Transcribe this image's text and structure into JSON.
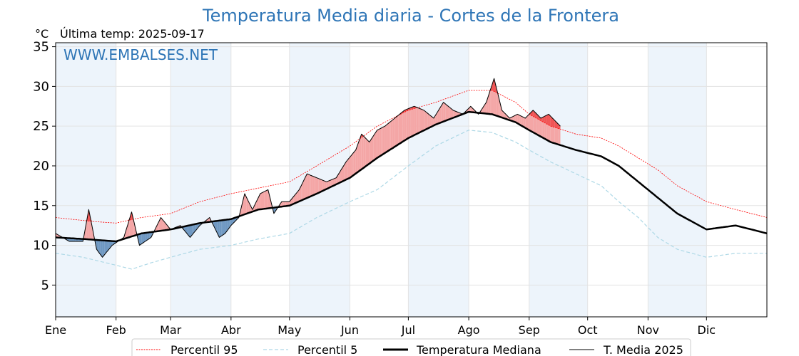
{
  "header": {
    "title": "Temperatura Media diaria - Cortes de la Frontera",
    "unit": "°C",
    "last_temp": "Última temp: 2025-09-17",
    "watermark": "WWW.EMBALSES.NET"
  },
  "legend": {
    "p95": "Percentil 95",
    "p5": "Percentil 5",
    "median": "Temperatura Mediana",
    "current": "T. Media 2025"
  },
  "chart_data": {
    "type": "line",
    "title": "Temperatura Media diaria - Cortes de la Frontera",
    "ylabel": "°C",
    "ylim": [
      1,
      35.5
    ],
    "xlim": [
      1,
      366
    ],
    "y_ticks": [
      5,
      10,
      15,
      20,
      25,
      30,
      35
    ],
    "months": [
      "Ene",
      "Feb",
      "Mar",
      "Abr",
      "May",
      "Jun",
      "Jul",
      "Ago",
      "Sep",
      "Oct",
      "Nov",
      "Dic"
    ],
    "month_start_days": [
      1,
      32,
      60,
      91,
      121,
      152,
      182,
      213,
      244,
      274,
      305,
      335
    ],
    "grid": true,
    "legend_position": "bottom",
    "colors": {
      "p95": "#ff0000",
      "p5": "#add8e6",
      "median": "#000000",
      "current": "#000000",
      "above_fill": "#f4a6a6",
      "above_p95_fill": "#f05555",
      "below_fill": "#6f98c2",
      "shade": "#edf4fb",
      "title": "#2e75b6"
    },
    "last_day": 260,
    "anchors": {
      "median": [
        [
          1,
          11
        ],
        [
          15,
          10.8
        ],
        [
          32,
          10.5
        ],
        [
          45,
          11.5
        ],
        [
          60,
          12
        ],
        [
          75,
          12.8
        ],
        [
          91,
          13.3
        ],
        [
          105,
          14.5
        ],
        [
          121,
          15
        ],
        [
          135,
          16.5
        ],
        [
          152,
          18.5
        ],
        [
          166,
          21
        ],
        [
          182,
          23.5
        ],
        [
          196,
          25.2
        ],
        [
          213,
          26.8
        ],
        [
          225,
          26.5
        ],
        [
          237,
          25.5
        ],
        [
          244,
          24.5
        ],
        [
          255,
          23
        ],
        [
          268,
          22
        ],
        [
          281,
          21.2
        ],
        [
          290,
          20
        ],
        [
          300,
          18
        ],
        [
          310,
          16
        ],
        [
          320,
          14
        ],
        [
          335,
          12
        ],
        [
          350,
          12.5
        ],
        [
          366,
          11.5
        ]
      ],
      "p95": [
        [
          1,
          13.5
        ],
        [
          20,
          13
        ],
        [
          32,
          12.8
        ],
        [
          45,
          13.5
        ],
        [
          60,
          14
        ],
        [
          75,
          15.5
        ],
        [
          91,
          16.5
        ],
        [
          105,
          17.2
        ],
        [
          121,
          18
        ],
        [
          135,
          20
        ],
        [
          152,
          22.5
        ],
        [
          166,
          25
        ],
        [
          182,
          27
        ],
        [
          196,
          28
        ],
        [
          213,
          29.5
        ],
        [
          225,
          29.5
        ],
        [
          237,
          28
        ],
        [
          244,
          26.5
        ],
        [
          255,
          25
        ],
        [
          268,
          24
        ],
        [
          281,
          23.5
        ],
        [
          290,
          22.5
        ],
        [
          300,
          21
        ],
        [
          310,
          19.5
        ],
        [
          320,
          17.5
        ],
        [
          335,
          15.5
        ],
        [
          350,
          14.5
        ],
        [
          366,
          13.5
        ]
      ],
      "p5": [
        [
          1,
          9
        ],
        [
          15,
          8.5
        ],
        [
          32,
          7.5
        ],
        [
          40,
          7
        ],
        [
          50,
          7.8
        ],
        [
          60,
          8.5
        ],
        [
          75,
          9.5
        ],
        [
          91,
          10
        ],
        [
          105,
          10.8
        ],
        [
          121,
          11.5
        ],
        [
          135,
          13.5
        ],
        [
          152,
          15.5
        ],
        [
          166,
          17
        ],
        [
          182,
          20
        ],
        [
          196,
          22.5
        ],
        [
          213,
          24.5
        ],
        [
          225,
          24.2
        ],
        [
          237,
          23
        ],
        [
          244,
          22
        ],
        [
          255,
          20.5
        ],
        [
          268,
          19
        ],
        [
          281,
          17.5
        ],
        [
          290,
          15.5
        ],
        [
          300,
          13.5
        ],
        [
          310,
          11
        ],
        [
          320,
          9.5
        ],
        [
          335,
          8.5
        ],
        [
          350,
          9
        ],
        [
          366,
          9
        ]
      ],
      "current": [
        [
          1,
          11.5
        ],
        [
          8,
          10.5
        ],
        [
          15,
          10.5
        ],
        [
          18,
          14.5
        ],
        [
          22,
          9.5
        ],
        [
          25,
          8.5
        ],
        [
          30,
          10
        ],
        [
          36,
          11
        ],
        [
          40,
          14.2
        ],
        [
          44,
          10
        ],
        [
          50,
          11
        ],
        [
          55,
          13.5
        ],
        [
          60,
          12
        ],
        [
          65,
          12.5
        ],
        [
          70,
          11
        ],
        [
          75,
          12.5
        ],
        [
          80,
          13.5
        ],
        [
          85,
          11
        ],
        [
          88,
          11.5
        ],
        [
          91,
          12.5
        ],
        [
          95,
          13.5
        ],
        [
          98,
          16.5
        ],
        [
          102,
          14.5
        ],
        [
          106,
          16.5
        ],
        [
          110,
          17
        ],
        [
          113,
          14
        ],
        [
          117,
          15.5
        ],
        [
          121,
          15.5
        ],
        [
          126,
          17
        ],
        [
          130,
          19
        ],
        [
          135,
          18.5
        ],
        [
          140,
          18
        ],
        [
          145,
          18.5
        ],
        [
          150,
          20.5
        ],
        [
          155,
          22
        ],
        [
          158,
          24
        ],
        [
          162,
          23
        ],
        [
          166,
          24.5
        ],
        [
          170,
          25
        ],
        [
          175,
          26
        ],
        [
          180,
          27
        ],
        [
          185,
          27.5
        ],
        [
          190,
          27
        ],
        [
          195,
          26
        ],
        [
          200,
          28
        ],
        [
          205,
          27
        ],
        [
          210,
          26.5
        ],
        [
          214,
          27.5
        ],
        [
          218,
          26.5
        ],
        [
          222,
          28
        ],
        [
          226,
          31
        ],
        [
          230,
          27
        ],
        [
          234,
          26
        ],
        [
          238,
          26.5
        ],
        [
          242,
          26
        ],
        [
          246,
          27
        ],
        [
          250,
          26
        ],
        [
          254,
          26.5
        ],
        [
          258,
          25.5
        ],
        [
          260,
          25
        ]
      ]
    }
  }
}
